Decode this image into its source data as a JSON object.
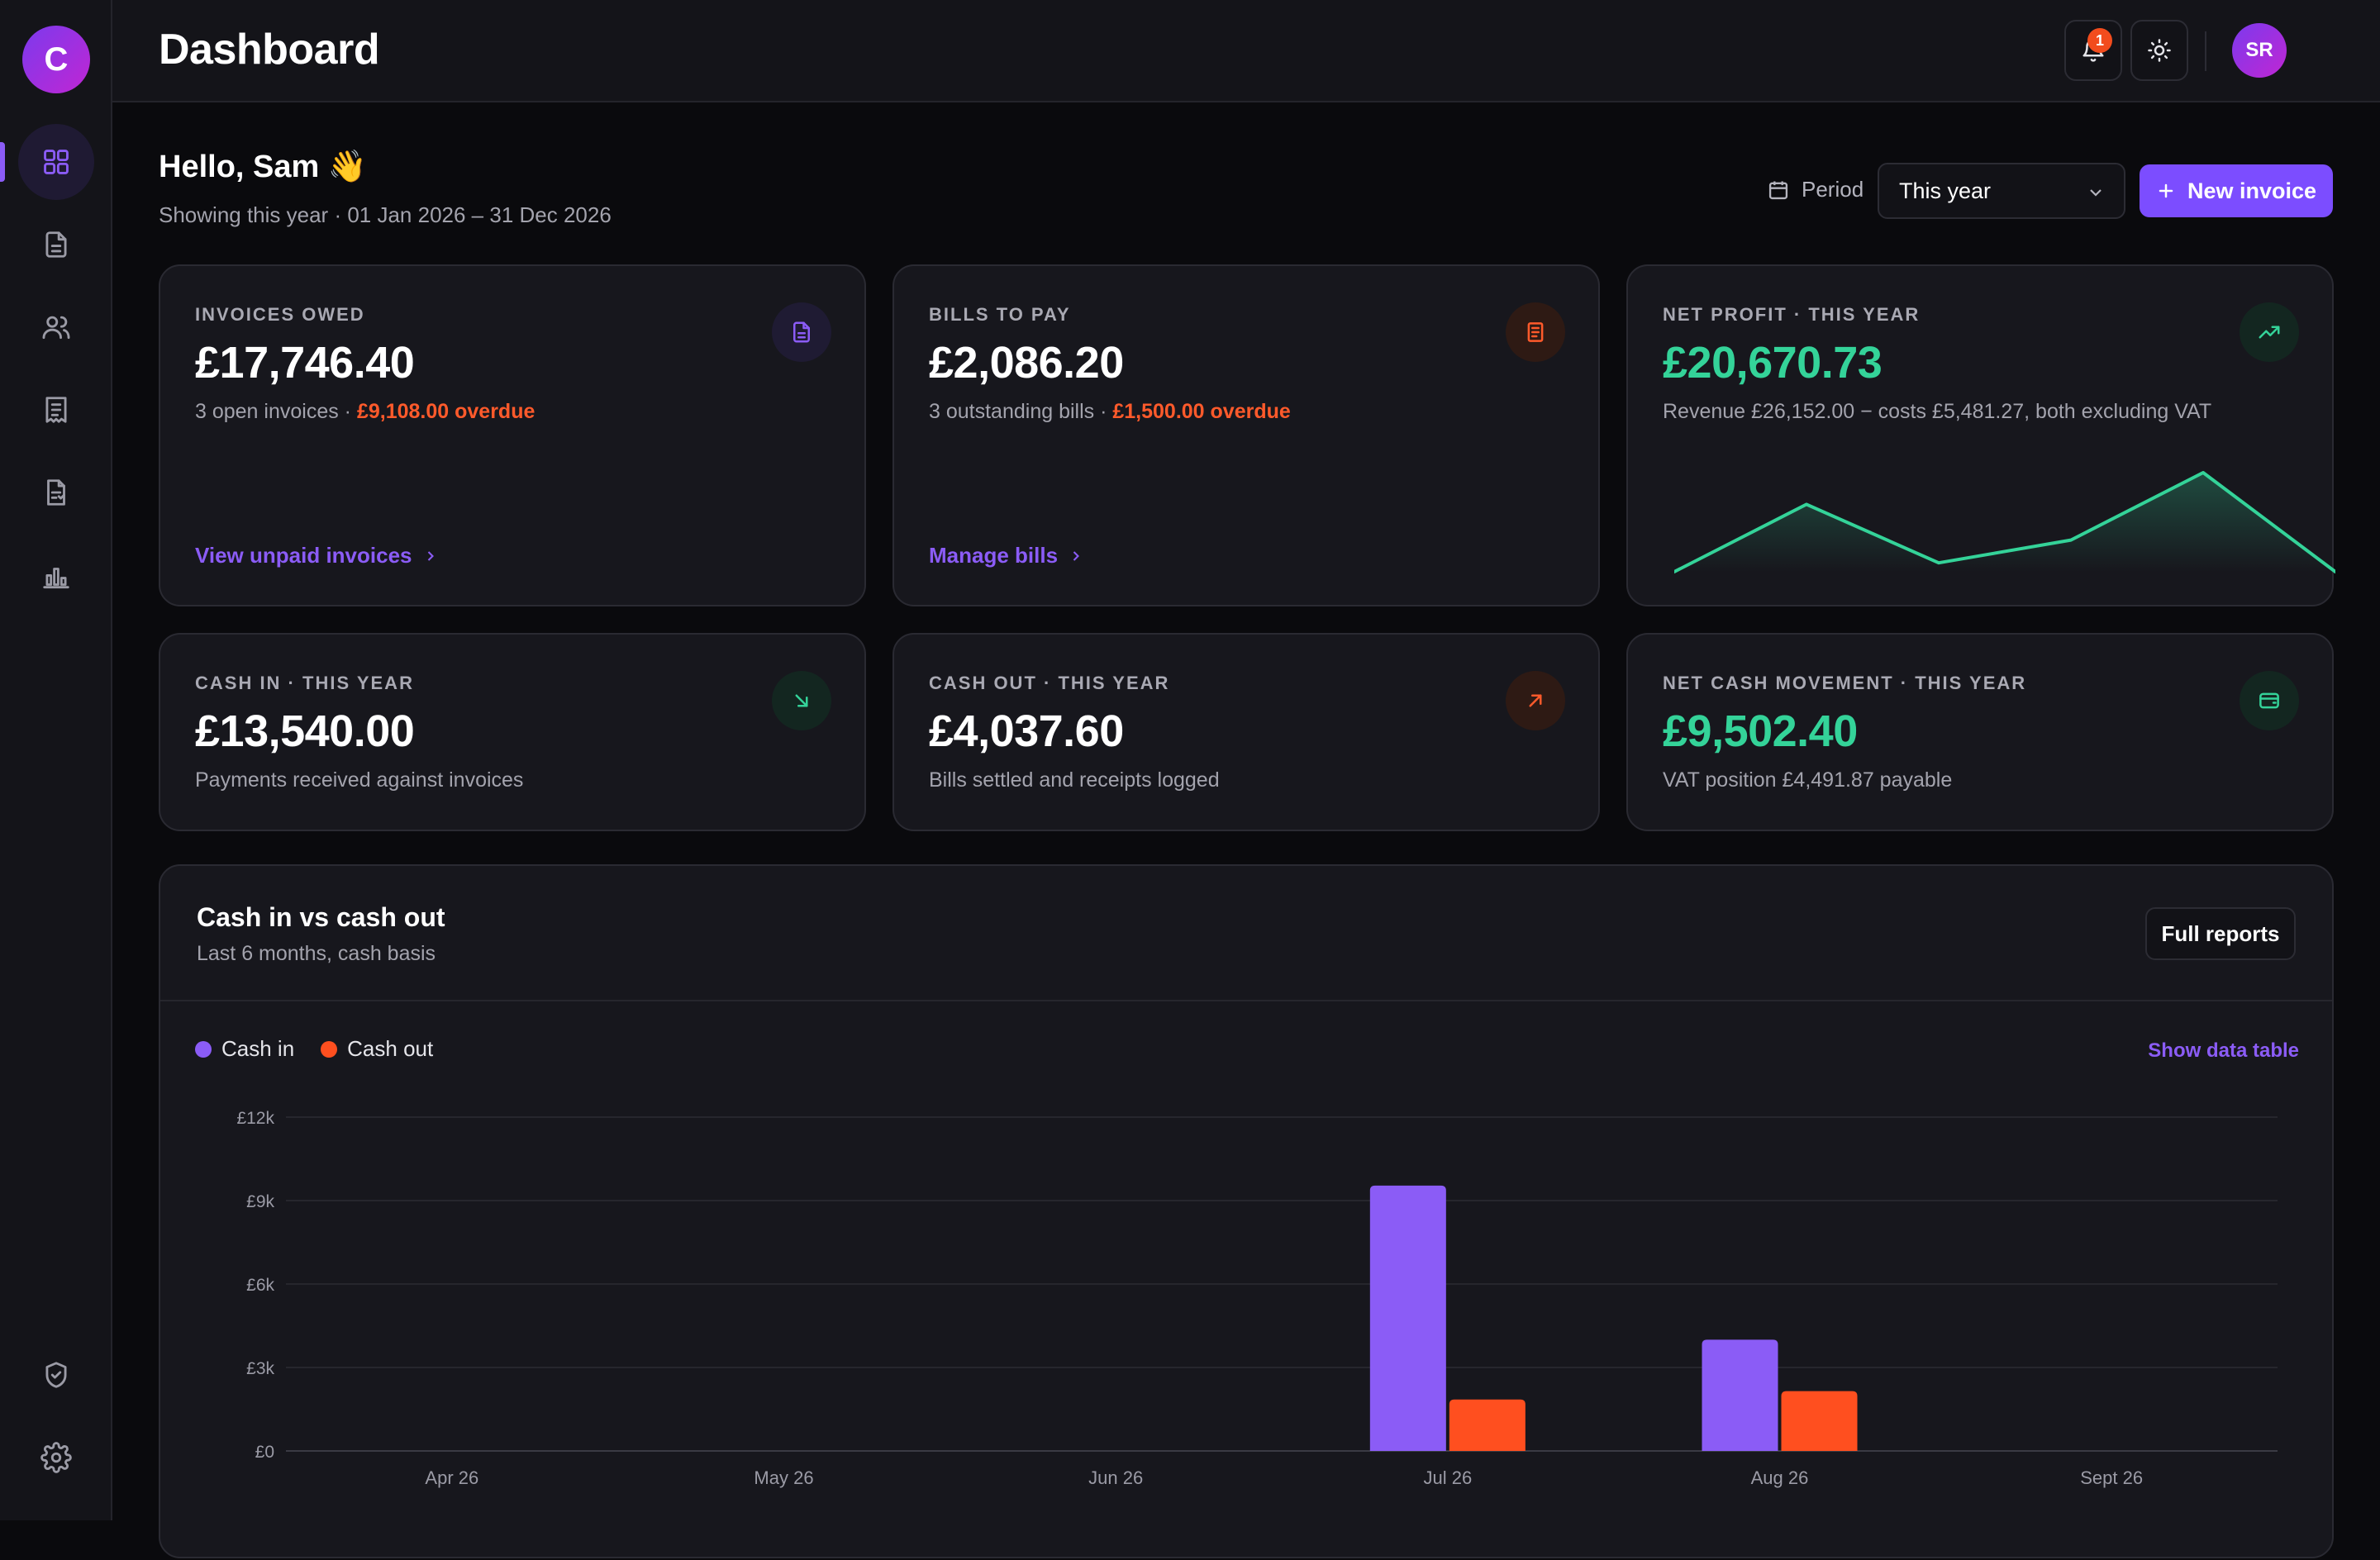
{
  "app": {
    "logo_letter": "C",
    "title": "Dashboard"
  },
  "sidebar": {
    "items": [
      {
        "name": "dashboard",
        "icon": "grid-icon",
        "active": true
      },
      {
        "name": "invoices",
        "icon": "document-icon",
        "active": false
      },
      {
        "name": "contacts",
        "icon": "users-icon",
        "active": false
      },
      {
        "name": "bills",
        "icon": "receipt-icon",
        "active": false
      },
      {
        "name": "receipts",
        "icon": "receipt-lines-icon",
        "active": false
      },
      {
        "name": "reports",
        "icon": "bar-chart-icon",
        "active": false
      }
    ],
    "bottom_items": [
      {
        "name": "security",
        "icon": "shield-check-icon"
      },
      {
        "name": "settings",
        "icon": "gear-icon"
      }
    ]
  },
  "topbar": {
    "notification_count": "1",
    "user_initials": "SR"
  },
  "greeting": {
    "title": "Hello, Sam 👋",
    "subtitle": "Showing this year · 01 Jan 2026 – 31 Dec 2026"
  },
  "period": {
    "label": "Period",
    "selected": "This year"
  },
  "new_invoice_label": "New invoice",
  "cards": {
    "invoices_owed": {
      "label": "INVOICES OWED",
      "value": "£17,746.40",
      "sub": "3 open invoices · ",
      "overdue": "£9,108.00 overdue",
      "link": "View unpaid invoices"
    },
    "bills_to_pay": {
      "label": "BILLS TO PAY",
      "value": "£2,086.20",
      "sub": "3 outstanding bills · ",
      "overdue": "£1,500.00 overdue",
      "link": "Manage bills"
    },
    "net_profit": {
      "label": "NET PROFIT · THIS YEAR",
      "value": "£20,670.73",
      "sub": "Revenue £26,152.00 − costs £5,481.27, both excluding VAT",
      "sparkline": [
        0.0,
        0.68,
        0.09,
        0.32,
        1.0,
        0.0
      ]
    },
    "cash_in": {
      "label": "CASH IN · THIS YEAR",
      "value": "£13,540.00",
      "sub": "Payments received against invoices"
    },
    "cash_out": {
      "label": "CASH OUT · THIS YEAR",
      "value": "£4,037.60",
      "sub": "Bills settled and receipts logged"
    },
    "net_cash": {
      "label": "NET CASH MOVEMENT · THIS YEAR",
      "value": "£9,502.40",
      "sub": "VAT position £4,491.87 payable"
    }
  },
  "panel": {
    "title": "Cash in vs cash out",
    "subtitle": "Last 6 months, cash basis",
    "full_reports_label": "Full reports",
    "show_table_label": "Show data table"
  },
  "colors": {
    "accent": "#8b5cf6",
    "cash_in": "#8b5cf6",
    "cash_out": "#ff4f1f",
    "positive": "#34d399"
  },
  "chart_data": {
    "type": "bar",
    "categories": [
      "Apr 26",
      "May 26",
      "Jun 26",
      "Jul 26",
      "Aug 26",
      "Sept 26"
    ],
    "series": [
      {
        "name": "Cash in",
        "values": [
          0,
          0,
          0,
          9540,
          4000,
          0
        ]
      },
      {
        "name": "Cash out",
        "values": [
          0,
          0,
          0,
          1850,
          2150,
          0
        ]
      }
    ],
    "yticks": [
      "£0",
      "£3k",
      "£6k",
      "£9k",
      "£12k"
    ],
    "ylim": [
      0,
      12000
    ],
    "grid": true,
    "legend": "top-left"
  }
}
